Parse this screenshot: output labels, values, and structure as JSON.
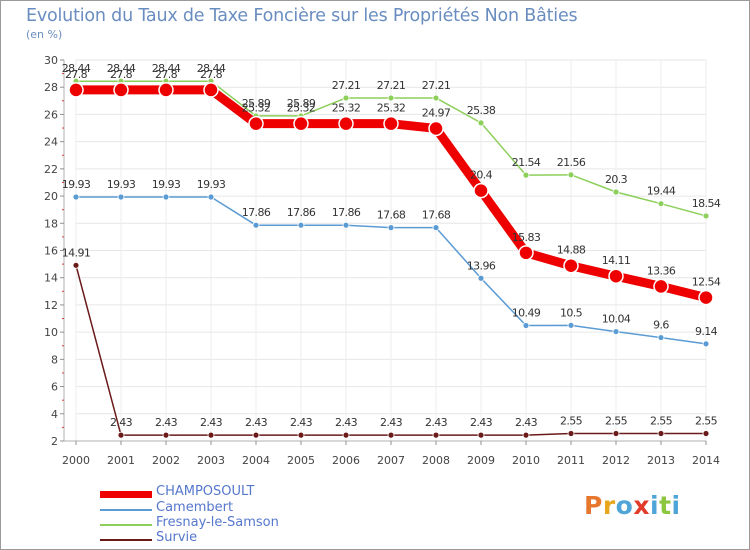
{
  "title": "Evolution du Taux de Taxe Foncière sur les Propriétés Non Bâties",
  "subtitle": "(en %)",
  "logo": {
    "text": "Proxiti",
    "colors": [
      "#e8772e",
      "#e8a51e",
      "#4fa5d8",
      "#e23b2c",
      "#4fa5d8",
      "#8cc63f",
      "#4fa5d8"
    ]
  },
  "chart_data": {
    "type": "line",
    "categories": [
      "2000",
      "2001",
      "2002",
      "2003",
      "2004",
      "2005",
      "2006",
      "2007",
      "2008",
      "2009",
      "2010",
      "2011",
      "2012",
      "2013",
      "2014"
    ],
    "ylim": [
      2,
      30
    ],
    "yticks": [
      2,
      4,
      6,
      8,
      10,
      12,
      14,
      16,
      18,
      20,
      22,
      24,
      26,
      28,
      30
    ],
    "series": [
      {
        "name": "Fresnay-le-Samson",
        "color": "#8ccf5a",
        "line_width": 1.5,
        "marker_r": 3,
        "values": [
          28.44,
          28.44,
          28.44,
          28.44,
          25.89,
          25.89,
          27.21,
          27.21,
          27.21,
          25.38,
          21.54,
          21.56,
          20.3,
          19.44,
          18.54
        ],
        "labels": [
          "28.44",
          "28.44",
          "28.44",
          "28.44",
          "25.89",
          "25.89",
          "27.21",
          "27.21",
          "27.21",
          "25.38",
          "21.54",
          "21.56",
          "20.3",
          "19.44",
          "18.54"
        ]
      },
      {
        "name": "Camembert",
        "color": "#5a9bd4",
        "line_width": 1.5,
        "marker_r": 3,
        "values": [
          19.93,
          19.93,
          19.93,
          19.93,
          17.86,
          17.86,
          17.86,
          17.68,
          17.68,
          13.96,
          10.49,
          10.5,
          10.04,
          9.6,
          9.14
        ],
        "labels": [
          "19.93",
          "19.93",
          "19.93",
          "19.93",
          "17.86",
          "17.86",
          "17.86",
          "17.68",
          "17.68",
          "13.96",
          "10.49",
          "10.5",
          "10.04",
          "9.6",
          "9.14"
        ]
      },
      {
        "name": "Survie",
        "color": "#6b1a1a",
        "line_width": 1.5,
        "marker_r": 3,
        "values": [
          14.91,
          2.43,
          2.43,
          2.43,
          2.43,
          2.43,
          2.43,
          2.43,
          2.43,
          2.43,
          2.43,
          2.55,
          2.55,
          2.55,
          2.55
        ],
        "labels": [
          "14.91",
          "2.43",
          "2.43",
          "2.43",
          "2.43",
          "2.43",
          "2.43",
          "2.43",
          "2.43",
          "2.43",
          "2.43",
          "2.55",
          "2.55",
          "2.55",
          "2.55"
        ]
      },
      {
        "name": "CHAMPOSOULT",
        "color": "#ee0000",
        "line_width": 9,
        "marker_r": 7,
        "values": [
          27.8,
          27.8,
          27.8,
          27.8,
          25.32,
          25.32,
          25.32,
          25.32,
          24.97,
          20.4,
          15.83,
          14.88,
          14.11,
          13.36,
          12.54
        ],
        "labels": [
          "27.8",
          "27.8",
          "27.8",
          "27.8",
          "25.32",
          "25.32",
          "25.32",
          "25.32",
          "24.97",
          "20.4",
          "15.83",
          "14.88",
          "14.11",
          "13.36",
          "12.54"
        ]
      }
    ],
    "legend": [
      {
        "name": "CHAMPOSOULT",
        "color": "#ee0000",
        "thick": true
      },
      {
        "name": "Camembert",
        "color": "#5a9bd4",
        "thick": false
      },
      {
        "name": "Fresnay-le-Samson",
        "color": "#8ccf5a",
        "thick": false
      },
      {
        "name": "Survie",
        "color": "#6b1a1a",
        "thick": false
      }
    ]
  }
}
